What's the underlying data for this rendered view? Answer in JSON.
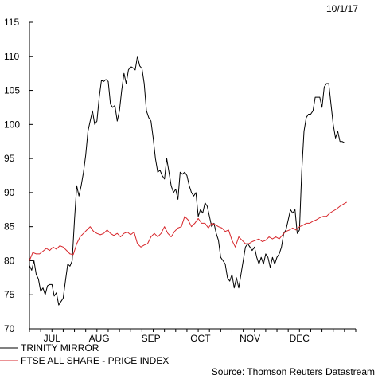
{
  "chart_data": {
    "type": "line",
    "date": "10/1/17",
    "source": "Source: Thomson Reuters Datastream",
    "ylim": [
      70,
      115
    ],
    "yticks": [
      70,
      75,
      80,
      85,
      90,
      95,
      100,
      105,
      110,
      115
    ],
    "xlim": [
      0,
      29
    ],
    "month_labels": [
      {
        "label": "JUL",
        "x": 2
      },
      {
        "label": "AUG",
        "x": 6.2
      },
      {
        "label": "SEP",
        "x": 10.8
      },
      {
        "label": "OCT",
        "x": 15.2
      },
      {
        "label": "NOV",
        "x": 19.6
      },
      {
        "label": "DEC",
        "x": 24.0
      }
    ],
    "x_minor_ticks": [
      0,
      1,
      2,
      3,
      4,
      5,
      6,
      7,
      8,
      9,
      10,
      11,
      12,
      13,
      14,
      15,
      16,
      17,
      18,
      19,
      20,
      21,
      22,
      23,
      24,
      25,
      26,
      27,
      28,
      29
    ],
    "grid": false,
    "legend_placement": "bottom-left",
    "series": [
      {
        "name": "TRINITY MIRROR",
        "color": "#000000",
        "points": [
          [
            0,
            79.3
          ],
          [
            0.2,
            78.6
          ],
          [
            0.4,
            80
          ],
          [
            0.6,
            78
          ],
          [
            0.8,
            77.3
          ],
          [
            1.0,
            75.5
          ],
          [
            1.2,
            76
          ],
          [
            1.4,
            75
          ],
          [
            1.6,
            76.3
          ],
          [
            1.8,
            76.5
          ],
          [
            2.0,
            76.5
          ],
          [
            2.2,
            74.8
          ],
          [
            2.4,
            75.3
          ],
          [
            2.6,
            73.5
          ],
          [
            2.8,
            74
          ],
          [
            3.0,
            74.5
          ],
          [
            3.2,
            77
          ],
          [
            3.4,
            79.5
          ],
          [
            3.6,
            79.2
          ],
          [
            3.8,
            80
          ],
          [
            4.0,
            86
          ],
          [
            4.2,
            91
          ],
          [
            4.4,
            89.5
          ],
          [
            4.6,
            91
          ],
          [
            4.8,
            93
          ],
          [
            5.0,
            95.5
          ],
          [
            5.2,
            99
          ],
          [
            5.4,
            100.5
          ],
          [
            5.6,
            102
          ],
          [
            5.8,
            100
          ],
          [
            6.0,
            100.5
          ],
          [
            6.2,
            104
          ],
          [
            6.4,
            106.5
          ],
          [
            6.6,
            106.3
          ],
          [
            6.8,
            106.6
          ],
          [
            7.0,
            106.3
          ],
          [
            7.2,
            103
          ],
          [
            7.4,
            102.5
          ],
          [
            7.6,
            102.8
          ],
          [
            7.8,
            100.5
          ],
          [
            8.0,
            102
          ],
          [
            8.2,
            105
          ],
          [
            8.4,
            107.5
          ],
          [
            8.6,
            106
          ],
          [
            8.8,
            108
          ],
          [
            9.0,
            108.5
          ],
          [
            9.2,
            108.3
          ],
          [
            9.4,
            108
          ],
          [
            9.6,
            110
          ],
          [
            9.8,
            108.6
          ],
          [
            10.0,
            108.2
          ],
          [
            10.2,
            106
          ],
          [
            10.4,
            102
          ],
          [
            10.6,
            101
          ],
          [
            10.8,
            100.5
          ],
          [
            11.0,
            98
          ],
          [
            11.2,
            95
          ],
          [
            11.4,
            93
          ],
          [
            11.6,
            93.3
          ],
          [
            11.8,
            92.5
          ],
          [
            12.0,
            92
          ],
          [
            12.2,
            95
          ],
          [
            12.4,
            93
          ],
          [
            12.6,
            91
          ],
          [
            12.8,
            90
          ],
          [
            13.0,
            90.5
          ],
          [
            13.2,
            89
          ],
          [
            13.4,
            93
          ],
          [
            13.6,
            92.7
          ],
          [
            13.8,
            93
          ],
          [
            14.0,
            92.5
          ],
          [
            14.2,
            91
          ],
          [
            14.4,
            90
          ],
          [
            14.6,
            89.5
          ],
          [
            14.8,
            90
          ],
          [
            15.0,
            86.5
          ],
          [
            15.2,
            87.5
          ],
          [
            15.4,
            87
          ],
          [
            15.6,
            88.5
          ],
          [
            15.8,
            88
          ],
          [
            16.0,
            86.5
          ],
          [
            16.2,
            85
          ],
          [
            16.4,
            85.5
          ],
          [
            16.6,
            84
          ],
          [
            16.8,
            83
          ],
          [
            17.0,
            80.5
          ],
          [
            17.2,
            80
          ],
          [
            17.4,
            79.5
          ],
          [
            17.6,
            77.5
          ],
          [
            17.8,
            77
          ],
          [
            18.0,
            78
          ],
          [
            18.2,
            76
          ],
          [
            18.4,
            77.5
          ],
          [
            18.6,
            76
          ],
          [
            18.8,
            78
          ],
          [
            19.0,
            80
          ],
          [
            19.2,
            82
          ],
          [
            19.4,
            82.5
          ],
          [
            19.6,
            82
          ],
          [
            19.8,
            81.5
          ],
          [
            20.0,
            82
          ],
          [
            20.2,
            80.5
          ],
          [
            20.4,
            79.5
          ],
          [
            20.6,
            80.5
          ],
          [
            20.8,
            79.5
          ],
          [
            21.0,
            81
          ],
          [
            21.2,
            80.5
          ],
          [
            21.4,
            79
          ],
          [
            21.6,
            80.5
          ],
          [
            21.8,
            79.5
          ],
          [
            22.0,
            80.5
          ],
          [
            22.2,
            81
          ],
          [
            22.4,
            82
          ],
          [
            22.6,
            84
          ],
          [
            22.8,
            84.5
          ],
          [
            23.0,
            86
          ],
          [
            23.2,
            87.5
          ],
          [
            23.4,
            87
          ],
          [
            23.6,
            87.5
          ],
          [
            23.8,
            84
          ],
          [
            24.0,
            84.5
          ],
          [
            24.2,
            93
          ],
          [
            24.4,
            99
          ],
          [
            24.6,
            101
          ],
          [
            24.8,
            101.5
          ],
          [
            25.0,
            101.5
          ],
          [
            25.2,
            102
          ],
          [
            25.4,
            104
          ],
          [
            25.6,
            104
          ],
          [
            25.8,
            104
          ],
          [
            26.0,
            102.5
          ],
          [
            26.2,
            105.5
          ],
          [
            26.4,
            106
          ],
          [
            26.6,
            106
          ],
          [
            26.8,
            103
          ],
          [
            27.0,
            100
          ],
          [
            27.2,
            98
          ],
          [
            27.4,
            99
          ],
          [
            27.6,
            97.5
          ],
          [
            27.8,
            97.5
          ],
          [
            28.0,
            97.3
          ]
        ]
      },
      {
        "name": "FTSE ALL SHARE - PRICE INDEX",
        "color": "#d7262b",
        "points": [
          [
            0,
            80
          ],
          [
            0.3,
            81.2
          ],
          [
            0.6,
            81
          ],
          [
            0.9,
            81
          ],
          [
            1.2,
            81.4
          ],
          [
            1.5,
            81.8
          ],
          [
            1.8,
            81.5
          ],
          [
            2.1,
            82
          ],
          [
            2.4,
            81.7
          ],
          [
            2.7,
            82.2
          ],
          [
            3.0,
            82
          ],
          [
            3.3,
            81.5
          ],
          [
            3.6,
            81
          ],
          [
            3.9,
            80.9
          ],
          [
            4.2,
            82.5
          ],
          [
            4.5,
            83.5
          ],
          [
            4.8,
            84
          ],
          [
            5.1,
            84.5
          ],
          [
            5.4,
            85
          ],
          [
            5.7,
            84.3
          ],
          [
            6.0,
            84
          ],
          [
            6.3,
            83.8
          ],
          [
            6.6,
            84
          ],
          [
            6.9,
            84.5
          ],
          [
            7.2,
            84
          ],
          [
            7.5,
            83.7
          ],
          [
            7.8,
            84
          ],
          [
            8.1,
            83.5
          ],
          [
            8.4,
            84
          ],
          [
            8.7,
            84.2
          ],
          [
            9.0,
            83.8
          ],
          [
            9.3,
            84.2
          ],
          [
            9.6,
            82.5
          ],
          [
            9.9,
            82
          ],
          [
            10.2,
            82.3
          ],
          [
            10.5,
            82.5
          ],
          [
            10.8,
            83.5
          ],
          [
            11.1,
            84
          ],
          [
            11.4,
            83.5
          ],
          [
            11.7,
            84
          ],
          [
            12.0,
            85
          ],
          [
            12.3,
            84
          ],
          [
            12.6,
            83.5
          ],
          [
            12.9,
            84.3
          ],
          [
            13.2,
            84.8
          ],
          [
            13.5,
            85
          ],
          [
            13.8,
            86.5
          ],
          [
            14.1,
            86
          ],
          [
            14.4,
            85
          ],
          [
            14.7,
            85.5
          ],
          [
            15.0,
            86.2
          ],
          [
            15.3,
            85.5
          ],
          [
            15.6,
            85.5
          ],
          [
            15.9,
            84.8
          ],
          [
            16.2,
            85.5
          ],
          [
            16.5,
            85.3
          ],
          [
            16.8,
            85
          ],
          [
            17.1,
            84.8
          ],
          [
            17.4,
            84.3
          ],
          [
            17.7,
            84.5
          ],
          [
            18.0,
            83
          ],
          [
            18.3,
            82
          ],
          [
            18.6,
            83.5
          ],
          [
            18.9,
            83
          ],
          [
            19.2,
            82.5
          ],
          [
            19.5,
            82.5
          ],
          [
            19.8,
            82.8
          ],
          [
            20.1,
            83
          ],
          [
            20.4,
            83.2
          ],
          [
            20.7,
            82.8
          ],
          [
            21.0,
            83
          ],
          [
            21.3,
            83.5
          ],
          [
            21.6,
            83.2
          ],
          [
            21.9,
            83.5
          ],
          [
            22.2,
            83.2
          ],
          [
            22.5,
            83.8
          ],
          [
            22.8,
            84.3
          ],
          [
            23.1,
            84.5
          ],
          [
            23.4,
            84.8
          ],
          [
            23.7,
            84.5
          ],
          [
            24.0,
            85
          ],
          [
            24.3,
            85.2
          ],
          [
            24.6,
            85.5
          ],
          [
            24.9,
            85.5
          ],
          [
            25.2,
            85.8
          ],
          [
            25.5,
            86
          ],
          [
            25.8,
            86.3
          ],
          [
            26.1,
            86.5
          ],
          [
            26.4,
            86.5
          ],
          [
            26.7,
            87
          ],
          [
            27.0,
            87.3
          ],
          [
            27.3,
            87.6
          ],
          [
            27.6,
            88
          ],
          [
            27.9,
            88.3
          ],
          [
            28.2,
            88.6
          ]
        ]
      }
    ]
  }
}
